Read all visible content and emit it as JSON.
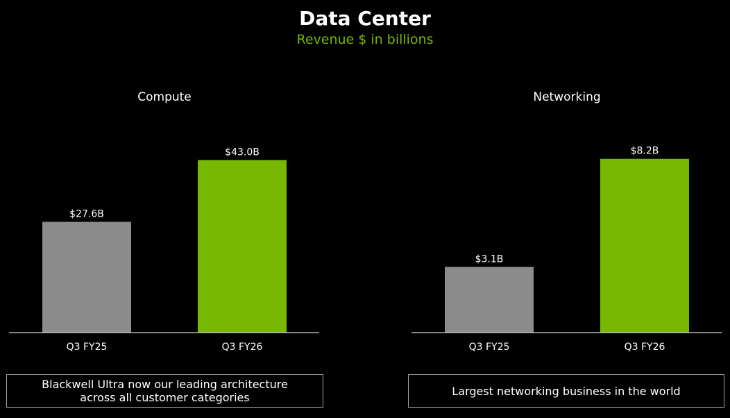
{
  "header": {
    "title": "Data Center",
    "subtitle": "Revenue $ in billions"
  },
  "colors": {
    "accent": "#76b900",
    "prior": "#8c8c8c",
    "background": "#000000"
  },
  "chart_data": [
    {
      "type": "bar",
      "title": "Compute",
      "categories": [
        "Q3 FY25",
        "Q3 FY26"
      ],
      "values": [
        27.6,
        43.0
      ],
      "labels": [
        "$27.6B",
        "$43.0B"
      ],
      "ylim": [
        0,
        50.7
      ],
      "xlabel": "",
      "ylabel": "",
      "grid": false,
      "bar_colors": [
        "#8c8c8c",
        "#76b900"
      ]
    },
    {
      "type": "bar",
      "title": "Networking",
      "categories": [
        "Q3 FY25",
        "Q3 FY26"
      ],
      "values": [
        3.1,
        8.2
      ],
      "labels": [
        "$3.1B",
        "$8.2B"
      ],
      "ylim": [
        0,
        9.6
      ],
      "xlabel": "",
      "ylabel": "",
      "grid": false,
      "bar_colors": [
        "#8c8c8c",
        "#76b900"
      ]
    }
  ],
  "callouts": {
    "compute": "Blackwell Ultra now our leading architecture\nacross all customer categories",
    "networking": "Largest networking business in the world"
  }
}
